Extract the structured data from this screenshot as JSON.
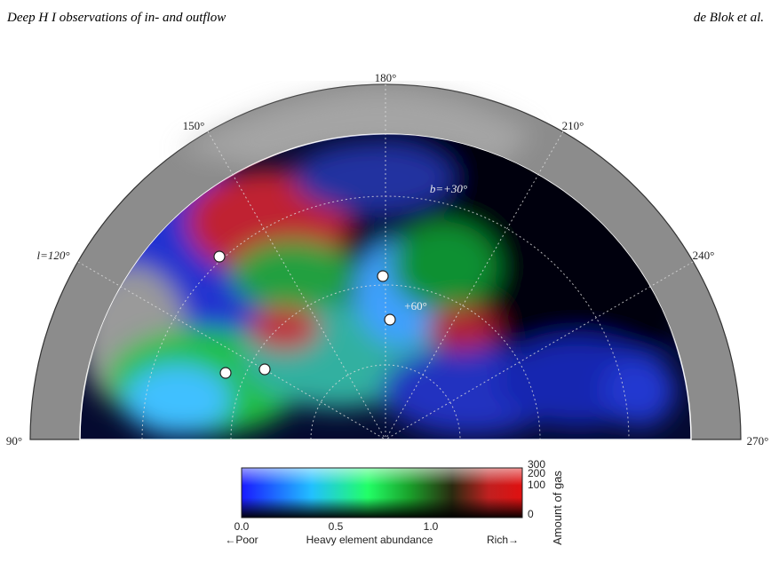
{
  "header": {
    "title": "Deep H I observations of in- and outflow",
    "authors": "de Blok et al."
  },
  "figure": {
    "longitude_labels": [
      "180°",
      "150°",
      "210°",
      "l=120°",
      "240°",
      "90°",
      "270°"
    ],
    "latitude_labels": [
      "b=+30°",
      "+60°"
    ],
    "colorbar": {
      "x_ticks": [
        "0.0",
        "0.5",
        "1.0"
      ],
      "x_label_left": "←Poor",
      "x_label": "Heavy element abundance",
      "x_label_right": "Rich→",
      "y_ticks": [
        "300",
        "200",
        "100",
        "0"
      ],
      "y_label": "Amount of gas"
    }
  }
}
